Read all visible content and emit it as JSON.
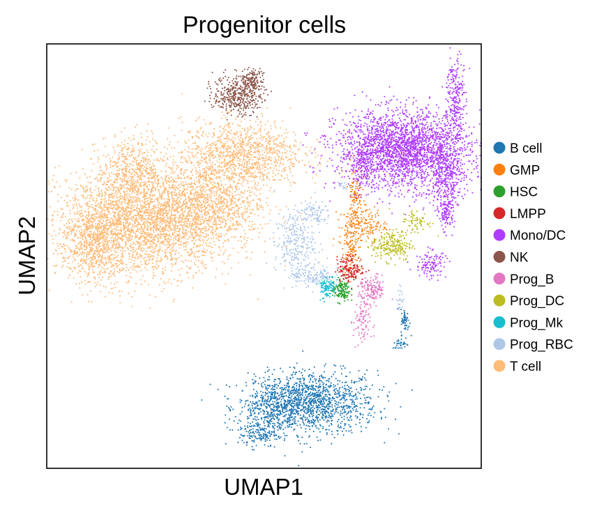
{
  "chart_data": {
    "type": "scatter",
    "title": "Progenitor cells",
    "xlabel": "UMAP1",
    "ylabel": "UMAP2",
    "xlim": [
      0,
      100
    ],
    "ylim": [
      0,
      100
    ],
    "ticks_shown": false,
    "grid": false,
    "legend_position": "right",
    "series": [
      {
        "name": "B cell",
        "color": "#1f77b4",
        "clusters": [
          {
            "x": 62,
            "y": 15.5,
            "sx": 7,
            "sy": 3.7,
            "n": 1100
          },
          {
            "x": 53,
            "y": 14.5,
            "sx": 4.5,
            "sy": 3.2,
            "n": 520
          },
          {
            "x": 48.5,
            "y": 8.2,
            "sx": 2.2,
            "sy": 1.6,
            "n": 130
          },
          {
            "x": 82.5,
            "y": 34.5,
            "sx": 0.5,
            "sy": 1.5,
            "n": 55
          },
          {
            "x": 81.5,
            "y": 29.3,
            "sx": 1.0,
            "sy": 0.6,
            "n": 30
          }
        ]
      },
      {
        "name": "GMP",
        "color": "#ff7f0e",
        "clusters": [
          {
            "x": 71,
            "y": 65,
            "sx": 0.8,
            "sy": 3.5,
            "n": 90
          },
          {
            "x": 70.5,
            "y": 57,
            "sx": 1.6,
            "sy": 2.2,
            "n": 120
          },
          {
            "x": 74.5,
            "y": 57.5,
            "sx": 1.8,
            "sy": 2.0,
            "n": 90
          },
          {
            "x": 69.8,
            "y": 50,
            "sx": 0.8,
            "sy": 2.8,
            "n": 80
          }
        ]
      },
      {
        "name": "HSC",
        "color": "#2ca02c",
        "clusters": [
          {
            "x": 67.8,
            "y": 42,
            "sx": 1.0,
            "sy": 1.4,
            "n": 140
          }
        ]
      },
      {
        "name": "LMPP",
        "color": "#d62728",
        "clusters": [
          {
            "x": 70,
            "y": 47,
            "sx": 1.6,
            "sy": 1.5,
            "n": 150
          }
        ]
      },
      {
        "name": "Mono/DC",
        "color": "#b03cff",
        "clusters": [
          {
            "x": 82,
            "y": 75,
            "sx": 7.5,
            "sy": 4.5,
            "n": 2600
          },
          {
            "x": 92,
            "y": 69,
            "sx": 2.2,
            "sy": 3.5,
            "n": 320
          },
          {
            "x": 94,
            "y": 87,
            "sx": 1.0,
            "sy": 6,
            "n": 260
          },
          {
            "x": 92,
            "y": 60.5,
            "sx": 0.9,
            "sy": 2.0,
            "n": 130
          },
          {
            "x": 88.5,
            "y": 48,
            "sx": 1.8,
            "sy": 1.6,
            "n": 120
          },
          {
            "x": 72.5,
            "y": 71,
            "sx": 1.0,
            "sy": 2.6,
            "n": 80
          }
        ]
      },
      {
        "name": "NK",
        "color": "#8c564b",
        "clusters": [
          {
            "x": 44,
            "y": 88,
            "sx": 2.8,
            "sy": 2.3,
            "n": 420
          },
          {
            "x": 47.5,
            "y": 91.5,
            "sx": 1.3,
            "sy": 1.3,
            "n": 120
          }
        ]
      },
      {
        "name": "Prog_B",
        "color": "#e377c2",
        "clusters": [
          {
            "x": 75,
            "y": 42,
            "sx": 1.5,
            "sy": 1.6,
            "n": 140
          },
          {
            "x": 72.5,
            "y": 34.5,
            "sx": 1.0,
            "sy": 3.2,
            "n": 90
          }
        ]
      },
      {
        "name": "Prog_DC",
        "color": "#bcbd22",
        "clusters": [
          {
            "x": 79.5,
            "y": 52.5,
            "sx": 2.3,
            "sy": 1.8,
            "n": 220
          },
          {
            "x": 85,
            "y": 58,
            "sx": 1.8,
            "sy": 1.5,
            "n": 70
          }
        ]
      },
      {
        "name": "Prog_Mk",
        "color": "#17becf",
        "clusters": [
          {
            "x": 64.5,
            "y": 43,
            "sx": 1.0,
            "sy": 1.4,
            "n": 110
          }
        ]
      },
      {
        "name": "Prog_RBC",
        "color": "#aec7e8",
        "clusters": [
          {
            "x": 57,
            "y": 53,
            "sx": 2.3,
            "sy": 3.5,
            "n": 260
          },
          {
            "x": 61,
            "y": 60,
            "sx": 2.2,
            "sy": 1.4,
            "n": 100
          },
          {
            "x": 61,
            "y": 45.5,
            "sx": 2.4,
            "sy": 1.3,
            "n": 140
          },
          {
            "x": 68.5,
            "y": 66.5,
            "sx": 1.2,
            "sy": 0.5,
            "n": 20
          },
          {
            "x": 81.5,
            "y": 40,
            "sx": 0.5,
            "sy": 1.5,
            "n": 25
          }
        ]
      },
      {
        "name": "T cell",
        "color": "#ffbb78",
        "clusters": [
          {
            "x": 23,
            "y": 58,
            "sx": 10,
            "sy": 6,
            "n": 3000
          },
          {
            "x": 11,
            "y": 53,
            "sx": 4,
            "sy": 5,
            "n": 700
          },
          {
            "x": 38,
            "y": 63,
            "sx": 6,
            "sy": 5,
            "n": 900
          },
          {
            "x": 45,
            "y": 74,
            "sx": 7,
            "sy": 4,
            "n": 1100
          },
          {
            "x": 20,
            "y": 70,
            "sx": 4,
            "sy": 4,
            "n": 500
          }
        ]
      }
    ]
  }
}
